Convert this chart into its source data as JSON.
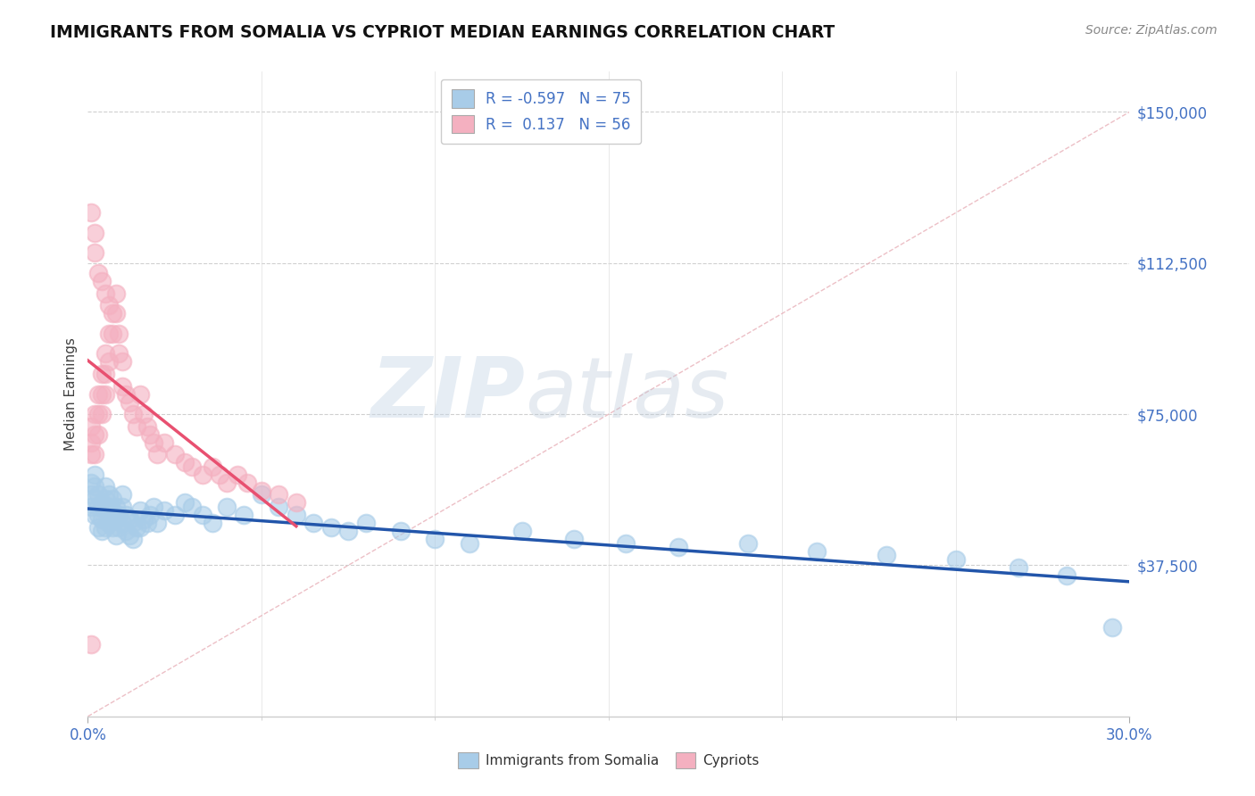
{
  "title": "IMMIGRANTS FROM SOMALIA VS CYPRIOT MEDIAN EARNINGS CORRELATION CHART",
  "source": "Source: ZipAtlas.com",
  "ylabel": "Median Earnings",
  "yticks": [
    0,
    37500,
    75000,
    112500,
    150000
  ],
  "ytick_labels": [
    "",
    "$37,500",
    "$75,000",
    "$112,500",
    "$150,000"
  ],
  "xlim": [
    0.0,
    0.3
  ],
  "ylim": [
    0,
    160000
  ],
  "somalia_color": "#a8cce8",
  "cypriot_color": "#f4b0c0",
  "somalia_line_color": "#2255aa",
  "cypriot_line_color": "#e85070",
  "diagonal_line_color": "#d0d0d0",
  "background_color": "#ffffff",
  "somalia_scatter_x": [
    0.001,
    0.001,
    0.001,
    0.002,
    0.002,
    0.002,
    0.002,
    0.003,
    0.003,
    0.003,
    0.003,
    0.004,
    0.004,
    0.004,
    0.005,
    0.005,
    0.005,
    0.005,
    0.006,
    0.006,
    0.006,
    0.007,
    0.007,
    0.007,
    0.008,
    0.008,
    0.008,
    0.009,
    0.009,
    0.01,
    0.01,
    0.01,
    0.011,
    0.011,
    0.012,
    0.012,
    0.013,
    0.013,
    0.014,
    0.015,
    0.015,
    0.016,
    0.017,
    0.018,
    0.019,
    0.02,
    0.022,
    0.025,
    0.028,
    0.03,
    0.033,
    0.036,
    0.04,
    0.045,
    0.05,
    0.055,
    0.06,
    0.065,
    0.07,
    0.075,
    0.08,
    0.09,
    0.1,
    0.11,
    0.125,
    0.14,
    0.155,
    0.17,
    0.19,
    0.21,
    0.23,
    0.25,
    0.268,
    0.282,
    0.295
  ],
  "somalia_scatter_y": [
    58000,
    55000,
    52000,
    60000,
    57000,
    54000,
    50000,
    55000,
    52000,
    50000,
    47000,
    53000,
    49000,
    46000,
    57000,
    54000,
    51000,
    47000,
    55000,
    52000,
    48000,
    54000,
    51000,
    47000,
    52000,
    49000,
    45000,
    50000,
    47000,
    55000,
    52000,
    48000,
    50000,
    46000,
    49000,
    45000,
    48000,
    44000,
    47000,
    51000,
    47000,
    49000,
    48000,
    50000,
    52000,
    48000,
    51000,
    50000,
    53000,
    52000,
    50000,
    48000,
    52000,
    50000,
    55000,
    52000,
    50000,
    48000,
    47000,
    46000,
    48000,
    46000,
    44000,
    43000,
    46000,
    44000,
    43000,
    42000,
    43000,
    41000,
    40000,
    39000,
    37000,
    35000,
    22000
  ],
  "cypriot_scatter_x": [
    0.001,
    0.001,
    0.001,
    0.002,
    0.002,
    0.002,
    0.003,
    0.003,
    0.003,
    0.004,
    0.004,
    0.004,
    0.005,
    0.005,
    0.005,
    0.006,
    0.006,
    0.007,
    0.007,
    0.008,
    0.008,
    0.009,
    0.009,
    0.01,
    0.01,
    0.011,
    0.012,
    0.013,
    0.014,
    0.015,
    0.016,
    0.017,
    0.018,
    0.019,
    0.02,
    0.022,
    0.025,
    0.028,
    0.03,
    0.033,
    0.036,
    0.038,
    0.04,
    0.043,
    0.046,
    0.05,
    0.055,
    0.06,
    0.002,
    0.003,
    0.004,
    0.005,
    0.006,
    0.001,
    0.002,
    0.001
  ],
  "cypriot_scatter_y": [
    72000,
    68000,
    65000,
    75000,
    70000,
    65000,
    80000,
    75000,
    70000,
    85000,
    80000,
    75000,
    90000,
    85000,
    80000,
    95000,
    88000,
    100000,
    95000,
    105000,
    100000,
    95000,
    90000,
    88000,
    82000,
    80000,
    78000,
    75000,
    72000,
    80000,
    75000,
    72000,
    70000,
    68000,
    65000,
    68000,
    65000,
    63000,
    62000,
    60000,
    62000,
    60000,
    58000,
    60000,
    58000,
    56000,
    55000,
    53000,
    115000,
    110000,
    108000,
    105000,
    102000,
    125000,
    120000,
    18000
  ]
}
